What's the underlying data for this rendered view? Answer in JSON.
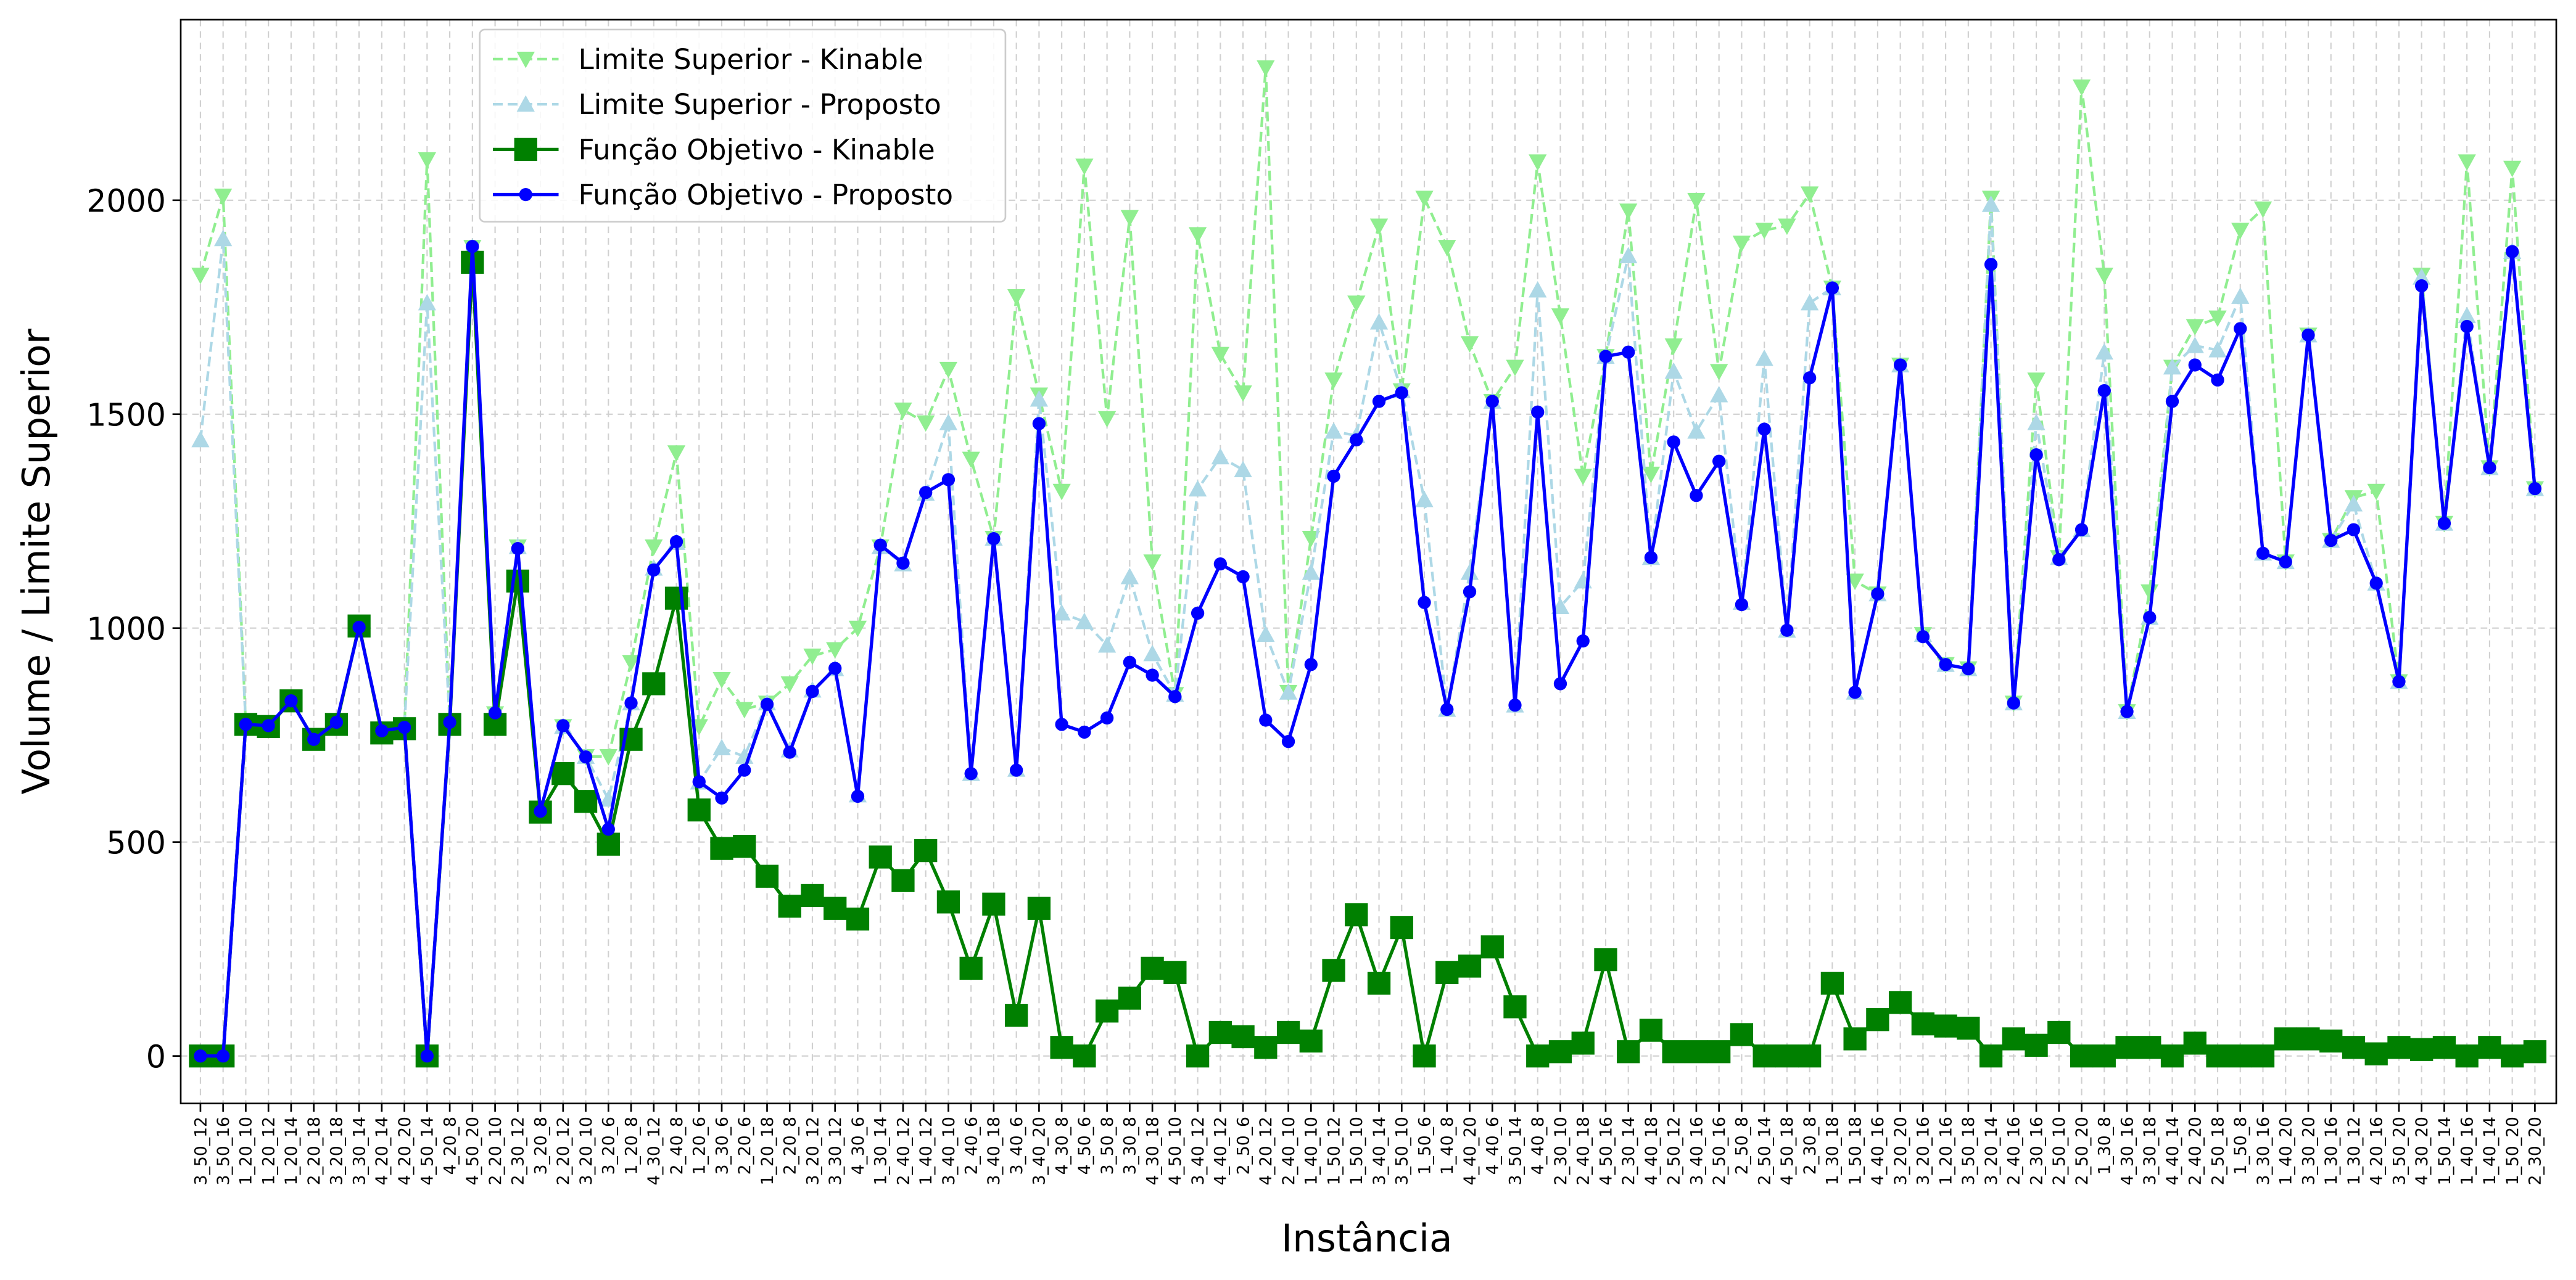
{
  "chart_data": {
    "type": "line",
    "x_label": "Instância",
    "y_label": "Volume / Limite Superior",
    "categories": [
      "3_50_12",
      "3_50_16",
      "1_20_10",
      "1_20_12",
      "1_20_14",
      "2_20_18",
      "3_20_18",
      "3_30_14",
      "4_20_14",
      "4_20_20",
      "4_50_14",
      "4_20_8",
      "4_50_20",
      "2_20_10",
      "2_30_12",
      "3_20_8",
      "2_20_12",
      "3_20_10",
      "3_20_6",
      "1_20_8",
      "4_30_12",
      "2_40_8",
      "1_20_6",
      "3_30_6",
      "2_20_6",
      "1_20_18",
      "2_20_8",
      "3_20_12",
      "3_30_12",
      "4_30_6",
      "1_30_14",
      "2_40_12",
      "1_40_12",
      "3_40_10",
      "2_40_6",
      "3_40_18",
      "3_40_6",
      "3_40_20",
      "4_30_8",
      "4_50_6",
      "3_50_8",
      "3_30_8",
      "4_30_18",
      "4_50_10",
      "3_40_12",
      "4_40_12",
      "2_50_6",
      "4_20_12",
      "2_40_10",
      "1_40_10",
      "1_50_12",
      "1_50_10",
      "3_40_14",
      "3_50_10",
      "1_50_6",
      "1_40_8",
      "4_40_20",
      "4_40_6",
      "3_50_14",
      "4_40_8",
      "2_30_10",
      "2_40_18",
      "4_50_16",
      "2_30_14",
      "4_40_18",
      "2_50_12",
      "3_40_16",
      "2_50_16",
      "2_50_8",
      "2_50_14",
      "4_50_18",
      "2_30_8",
      "1_30_18",
      "1_50_18",
      "4_40_16",
      "3_20_20",
      "3_20_16",
      "1_20_16",
      "3_50_18",
      "3_20_14",
      "2_40_16",
      "2_30_16",
      "2_50_10",
      "2_50_20",
      "1_30_8",
      "4_30_16",
      "3_30_18",
      "4_40_14",
      "2_40_20",
      "2_50_18",
      "1_50_8",
      "3_30_16",
      "1_40_20",
      "3_30_20",
      "1_30_16",
      "1_30_12",
      "4_20_16",
      "3_50_20",
      "4_30_20",
      "1_50_14",
      "1_40_16",
      "1_40_14",
      "1_50_20",
      "2_30_20"
    ],
    "series": [
      {
        "name": "Limite Superior - Kinable",
        "color": "#90ee90",
        "marker": "v",
        "linestyle": "dashed",
        "values": [
          1825,
          2010,
          775,
          770,
          830,
          740,
          780,
          1005,
          760,
          770,
          2095,
          780,
          1890,
          800,
          1190,
          575,
          770,
          700,
          700,
          920,
          1190,
          1410,
          770,
          880,
          810,
          825,
          870,
          935,
          950,
          1000,
          1190,
          1510,
          1480,
          1605,
          1395,
          1210,
          1775,
          1545,
          1320,
          2080,
          1490,
          1960,
          1155,
          845,
          1920,
          1640,
          1550,
          2310,
          850,
          1210,
          1580,
          1760,
          1940,
          1555,
          2005,
          1890,
          1665,
          1530,
          1610,
          2090,
          1730,
          1355,
          1635,
          1975,
          1360,
          1660,
          2000,
          1600,
          1900,
          1930,
          1940,
          2015,
          1795,
          1110,
          1080,
          1615,
          985,
          915,
          905,
          2005,
          825,
          1580,
          1165,
          2265,
          1825,
          805,
          1085,
          1610,
          1705,
          1725,
          1930,
          1980,
          1155,
          1685,
          1205,
          1305,
          1320,
          875,
          1825,
          1245,
          2090,
          1375,
          2075,
          1326
        ]
      },
      {
        "name": "Limite Superior - Proposto",
        "color": "#add8e6",
        "marker": "^",
        "linestyle": "dashed",
        "values": [
          1440,
          1910,
          775,
          770,
          830,
          740,
          780,
          1005,
          760,
          770,
          1760,
          780,
          1890,
          800,
          1190,
          575,
          770,
          700,
          600,
          825,
          1140,
          1200,
          640,
          720,
          700,
          825,
          715,
          855,
          905,
          610,
          1190,
          1150,
          1315,
          1480,
          660,
          1210,
          670,
          1535,
          1035,
          1015,
          960,
          1120,
          940,
          845,
          1325,
          1400,
          1370,
          985,
          850,
          1130,
          1460,
          1450,
          1715,
          1555,
          1300,
          810,
          1130,
          1530,
          820,
          1790,
          1050,
          1110,
          1635,
          1870,
          1165,
          1600,
          1460,
          1545,
          1060,
          1630,
          995,
          1760,
          1795,
          850,
          1080,
          1615,
          985,
          915,
          905,
          1990,
          825,
          1480,
          1165,
          1230,
          1645,
          805,
          1025,
          1610,
          1660,
          1650,
          1775,
          1175,
          1155,
          1685,
          1205,
          1290,
          1105,
          875,
          1820,
          1245,
          1730,
          1375,
          1880,
          1326
        ]
      },
      {
        "name": "Função Objetivo - Kinable",
        "color": "#008000",
        "marker": "s",
        "linestyle": "solid",
        "values": [
          0,
          0,
          775,
          770,
          830,
          740,
          775,
          1005,
          755,
          765,
          0,
          775,
          1855,
          775,
          1110,
          570,
          660,
          595,
          495,
          740,
          870,
          1070,
          575,
          485,
          490,
          420,
          350,
          375,
          345,
          320,
          465,
          410,
          480,
          360,
          205,
          355,
          95,
          345,
          20,
          0,
          105,
          135,
          205,
          195,
          0,
          55,
          45,
          20,
          55,
          35,
          200,
          330,
          170,
          300,
          0,
          195,
          210,
          255,
          115,
          0,
          10,
          30,
          225,
          10,
          60,
          10,
          10,
          10,
          50,
          0,
          0,
          0,
          170,
          40,
          85,
          125,
          75,
          70,
          65,
          0,
          40,
          25,
          55,
          0,
          0,
          20,
          20,
          0,
          30,
          0,
          0,
          0,
          40,
          40,
          35,
          20,
          5,
          20,
          15,
          20,
          0,
          20,
          0,
          10
        ]
      },
      {
        "name": "Função Objetivo - Proposto",
        "color": "#0000ff",
        "marker": "o",
        "linestyle": "solid",
        "values": [
          0,
          0,
          775,
          772,
          830,
          740,
          780,
          1002,
          760,
          768,
          0,
          780,
          1892,
          802,
          1186,
          572,
          772,
          699,
          530,
          825,
          1136,
          1202,
          641,
          603,
          668,
          822,
          710,
          852,
          906,
          607,
          1194,
          1152,
          1317,
          1347,
          660,
          1209,
          668,
          1478,
          775,
          757,
          790,
          920,
          890,
          840,
          1035,
          1150,
          1120,
          785,
          735,
          915,
          1355,
          1440,
          1530,
          1550,
          1060,
          810,
          1085,
          1530,
          820,
          1505,
          870,
          970,
          1635,
          1645,
          1165,
          1435,
          1310,
          1390,
          1055,
          1465,
          995,
          1585,
          1795,
          850,
          1080,
          1615,
          980,
          915,
          905,
          1850,
          825,
          1405,
          1160,
          1230,
          1555,
          805,
          1025,
          1530,
          1615,
          1580,
          1700,
          1175,
          1155,
          1685,
          1205,
          1230,
          1105,
          875,
          1800,
          1245,
          1705,
          1375,
          1880,
          1326
        ]
      }
    ],
    "ylim": [
      -111,
      2422
    ],
    "yticks": [
      0,
      500,
      1000,
      1500,
      2000
    ],
    "grid": true,
    "legend": "upper left"
  }
}
